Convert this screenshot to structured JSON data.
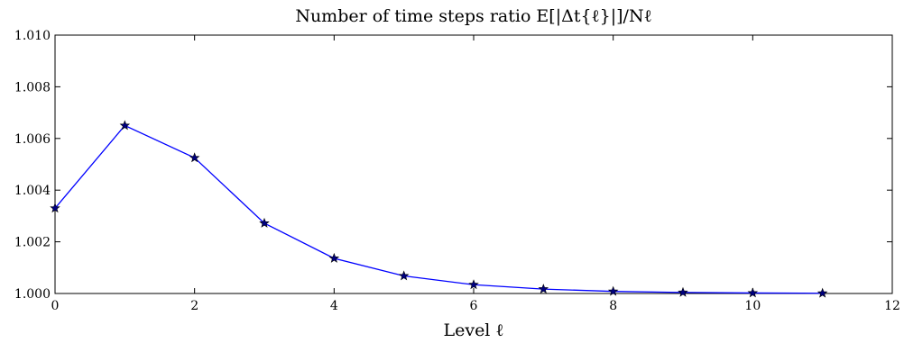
{
  "chart_data": {
    "type": "line",
    "title": "Number of time steps ratio E[|Δt{ℓ}|]/Nℓ",
    "xlabel": "Level ℓ",
    "ylabel": "",
    "xlim": [
      0,
      12
    ],
    "ylim": [
      1.0,
      1.01
    ],
    "xticks": [
      0,
      2,
      4,
      6,
      8,
      10,
      12
    ],
    "xtick_labels": [
      "0",
      "2",
      "4",
      "6",
      "8",
      "10",
      "12"
    ],
    "yticks": [
      1.0,
      1.002,
      1.004,
      1.006,
      1.008,
      1.01
    ],
    "ytick_labels": [
      "1.000",
      "1.002",
      "1.004",
      "1.006",
      "1.008",
      "1.010"
    ],
    "grid": false,
    "series": [
      {
        "x": [
          0,
          1,
          2,
          3,
          4,
          5,
          6,
          7,
          8,
          9,
          10,
          11
        ],
        "values": [
          1.0033,
          1.0065,
          1.00525,
          1.00272,
          1.00136,
          1.00068,
          1.00034,
          1.00017,
          1.00008,
          1.00004,
          1.00002,
          1.00001
        ],
        "color": "#0000ff",
        "marker": "star",
        "marker_color": "#000080"
      }
    ]
  }
}
